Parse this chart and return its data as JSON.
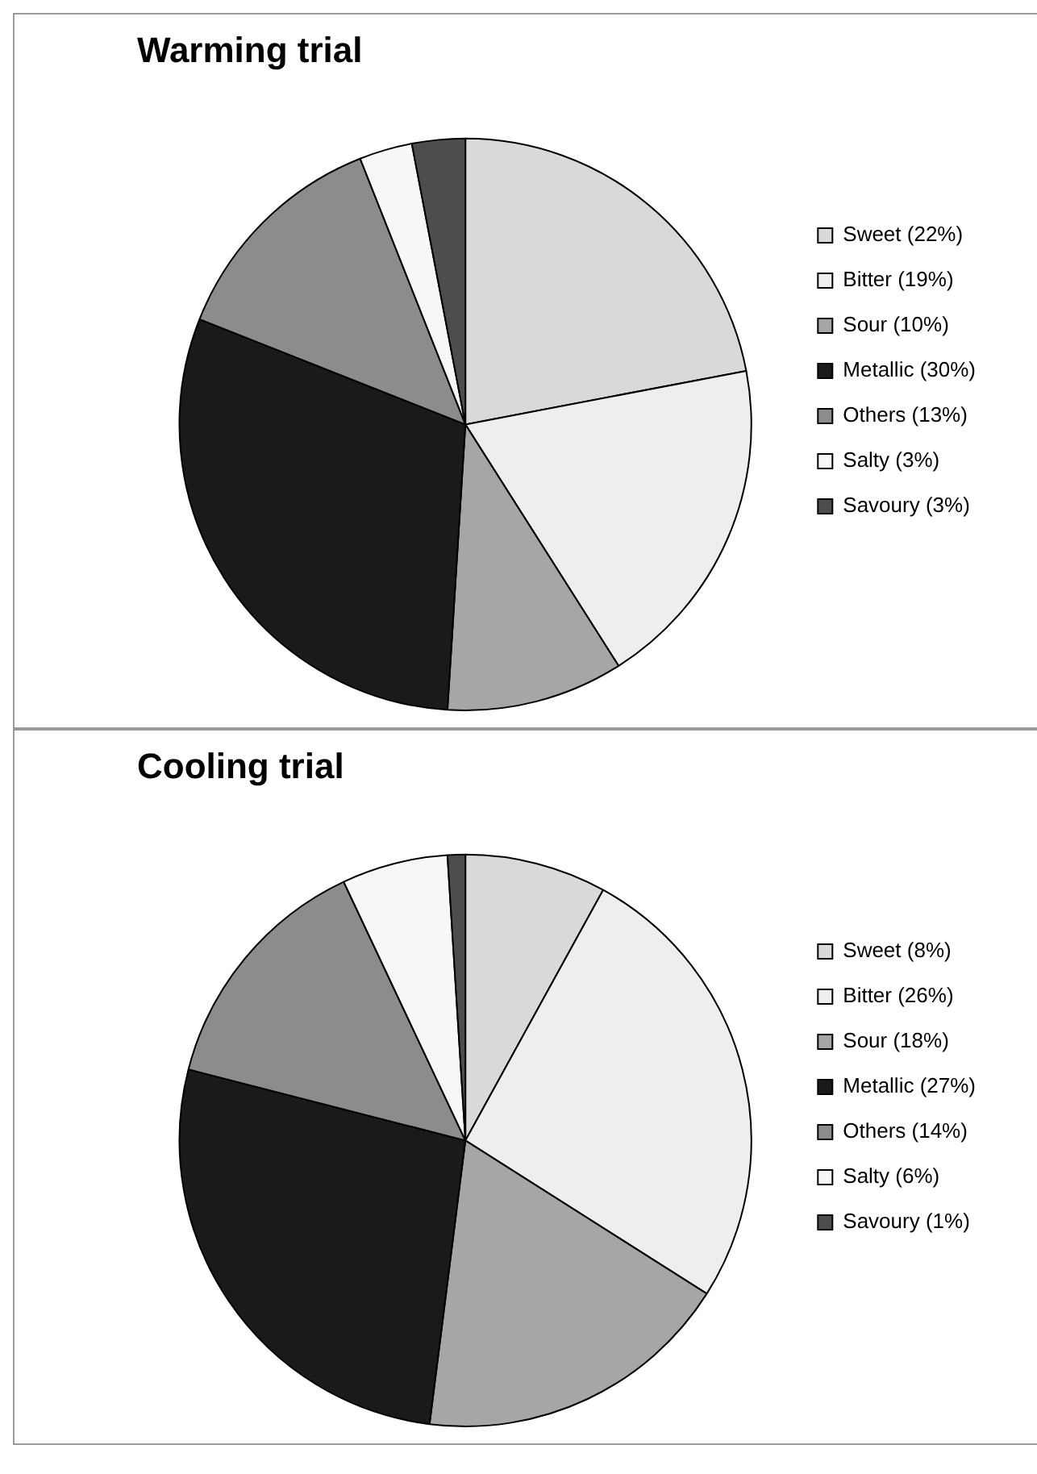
{
  "chart_data": [
    {
      "type": "pie",
      "title": "Warming trial",
      "categories": [
        "Sweet (22%)",
        "Bitter (19%)",
        "Sour (10%)",
        "Metallic (30%)",
        "Others (13%)",
        "Salty (3%)",
        "Savoury (3%)"
      ],
      "values": [
        22,
        19,
        10,
        30,
        13,
        3,
        3
      ],
      "colors": [
        "#d9d9d9",
        "#eeeeee",
        "#a6a6a6",
        "#1a1a1a",
        "#8c8c8c",
        "#f7f7f7",
        "#4d4d4d"
      ],
      "legend": "right"
    },
    {
      "type": "pie",
      "title": "Cooling trial",
      "categories": [
        "Sweet (8%)",
        "Bitter (26%)",
        "Sour (18%)",
        "Metallic (27%)",
        "Others (14%)",
        "Salty (6%)",
        "Savoury (1%)"
      ],
      "values": [
        8,
        26,
        18,
        27,
        14,
        6,
        1
      ],
      "colors": [
        "#d9d9d9",
        "#eeeeee",
        "#a6a6a6",
        "#1a1a1a",
        "#8c8c8c",
        "#f7f7f7",
        "#4d4d4d"
      ],
      "legend": "right"
    }
  ]
}
